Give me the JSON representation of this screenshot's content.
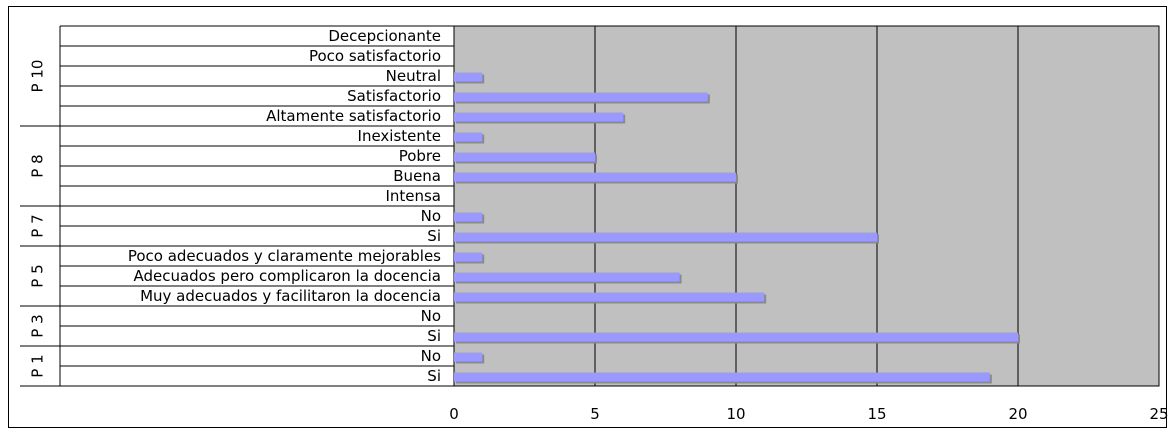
{
  "chart_data": {
    "type": "bar",
    "orientation": "horizontal",
    "title": "",
    "xlabel": "",
    "ylabel": "",
    "xlim": [
      0,
      25
    ],
    "xticks": [
      0,
      5,
      10,
      15,
      20,
      25
    ],
    "grid": true,
    "colors": {
      "plot_bg": "#c0c0c0",
      "bar": "#9999ff",
      "bar_shadow": "#8a8a8a",
      "grid": "#000000"
    },
    "groups": [
      {
        "name": "P 10",
        "items": [
          {
            "label": "Decepcionante",
            "value": 0
          },
          {
            "label": "Poco satisfactorio",
            "value": 0
          },
          {
            "label": "Neutral",
            "value": 1
          },
          {
            "label": "Satisfactorio",
            "value": 9
          },
          {
            "label": "Altamente satisfactorio",
            "value": 6
          }
        ]
      },
      {
        "name": "P 8",
        "items": [
          {
            "label": "Inexistente",
            "value": 1
          },
          {
            "label": "Pobre",
            "value": 5
          },
          {
            "label": "Buena",
            "value": 10
          },
          {
            "label": "Intensa",
            "value": 0
          }
        ]
      },
      {
        "name": "P 7",
        "items": [
          {
            "label": "No",
            "value": 1
          },
          {
            "label": "Si",
            "value": 15
          }
        ]
      },
      {
        "name": "P 5",
        "items": [
          {
            "label": "Poco adecuados y claramente mejorables",
            "value": 1
          },
          {
            "label": "Adecuados pero complicaron la docencia",
            "value": 8
          },
          {
            "label": "Muy adecuados y facilitaron la docencia",
            "value": 11
          }
        ]
      },
      {
        "name": "P 3",
        "items": [
          {
            "label": "No",
            "value": 0
          },
          {
            "label": "Si",
            "value": 20
          }
        ]
      },
      {
        "name": "P 1",
        "items": [
          {
            "label": "No",
            "value": 1
          },
          {
            "label": "Si",
            "value": 19
          }
        ]
      }
    ]
  }
}
